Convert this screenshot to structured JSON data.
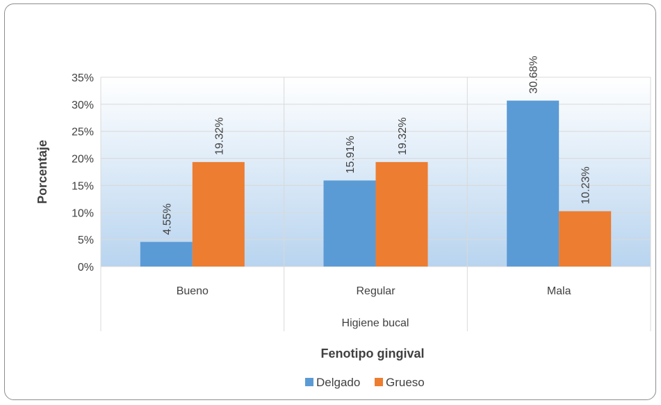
{
  "chart_data": {
    "type": "bar",
    "categories": [
      "Bueno",
      "Regular",
      "Mala"
    ],
    "category_axis_label": "Higiene bucal",
    "series": [
      {
        "name": "Delgado",
        "values": [
          4.55,
          15.91,
          30.68
        ],
        "labels": [
          "4.55%",
          "15.91%",
          "30.68%"
        ],
        "color": "#5b9bd5"
      },
      {
        "name": "Grueso",
        "values": [
          19.32,
          19.32,
          10.23
        ],
        "labels": [
          "19.32%",
          "19.32%",
          "10.23%"
        ],
        "color": "#ed7d31"
      }
    ],
    "ylabel": "Porcentaje",
    "xlabel": "Fenotipo gingival",
    "ylim": [
      0,
      35
    ],
    "yticks": [
      0,
      5,
      10,
      15,
      20,
      25,
      30,
      35
    ],
    "ytick_labels": [
      "0%",
      "5%",
      "10%",
      "15%",
      "20%",
      "25%",
      "30%",
      "35%"
    ],
    "legend": "bottom",
    "grid": "vertical category separators",
    "plot_background": "gradient white to light blue"
  }
}
